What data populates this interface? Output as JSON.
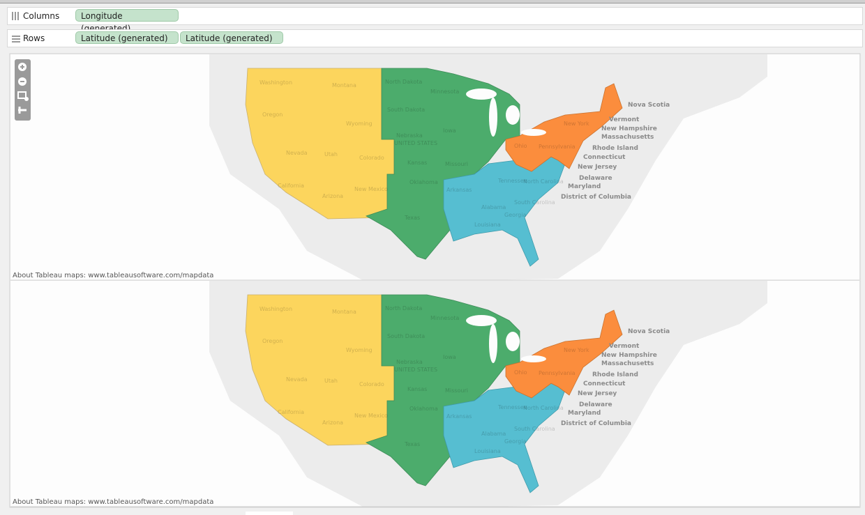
{
  "shelves": {
    "columns": {
      "label": "Columns",
      "pills": [
        "Longitude (generated)"
      ]
    },
    "rows": {
      "label": "Rows",
      "pills": [
        "Latitude (generated)",
        "Latitude (generated)"
      ]
    }
  },
  "map_labels": [
    "Nova Scotia",
    "Vermont",
    "New Hampshire",
    "Massachusetts",
    "Rhode Island",
    "Connecticut",
    "New Jersey",
    "Delaware",
    "Maryland",
    "District of Columbia",
    "Washington",
    "Montana",
    "North Dakota",
    "Oregon",
    "Wyoming",
    "South Dakota",
    "Nevada",
    "Utah",
    "Colorado",
    "Nebraska",
    "Kansas",
    "California",
    "Arizona",
    "New Mexico",
    "Oklahoma",
    "Texas",
    "Minnesota",
    "Iowa",
    "Missouri",
    "UNITED STATES",
    "Ohio",
    "New York",
    "Pennsylvania",
    "Arkansas",
    "Tennessee",
    "North Carolina",
    "South Carolina",
    "Alabama",
    "Georgia",
    "Louisiana"
  ],
  "panes": [
    {
      "attribution": "About Tableau maps: www.tableausoftware.com/mapdata"
    },
    {
      "attribution": "About Tableau maps: www.tableausoftware.com/mapdata"
    }
  ]
}
